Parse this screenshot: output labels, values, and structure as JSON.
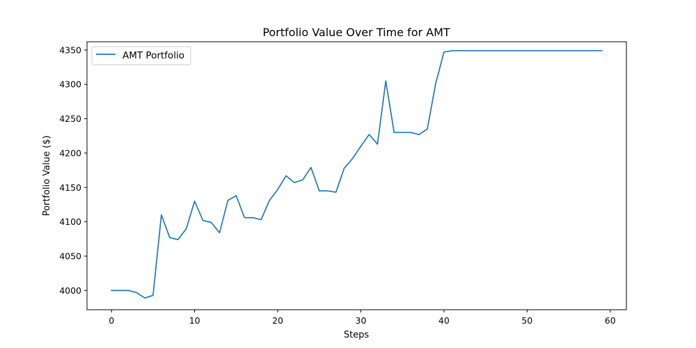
{
  "chart_data": {
    "type": "line",
    "title": "Portfolio Value Over Time for AMT",
    "xlabel": "Steps",
    "ylabel": "Portfolio Value ($)",
    "xlim": [
      -2.95,
      61.95
    ],
    "ylim": [
      3972,
      4362
    ],
    "xticks": [
      0,
      10,
      20,
      30,
      40,
      50,
      60
    ],
    "yticks": [
      4000,
      4050,
      4100,
      4150,
      4200,
      4250,
      4300,
      4350
    ],
    "grid": false,
    "legend": {
      "placement": "top-left"
    },
    "series": [
      {
        "name": "AMT Portfolio",
        "color": "#1f77b4",
        "x": [
          0,
          1,
          2,
          3,
          4,
          5,
          6,
          7,
          8,
          9,
          10,
          11,
          12,
          13,
          14,
          15,
          16,
          17,
          18,
          19,
          20,
          21,
          22,
          23,
          24,
          25,
          26,
          27,
          28,
          29,
          30,
          31,
          32,
          33,
          34,
          35,
          36,
          37,
          38,
          39,
          40,
          41,
          42,
          43,
          44,
          45,
          46,
          47,
          48,
          49,
          50,
          51,
          52,
          53,
          54,
          55,
          56,
          57,
          58,
          59
        ],
        "values": [
          4000,
          4000,
          4000,
          3997,
          3989,
          3993,
          4110,
          4077,
          4074,
          4090,
          4130,
          4102,
          4099,
          4084,
          4131,
          4138,
          4106,
          4106,
          4103,
          4131,
          4147,
          4167,
          4157,
          4161,
          4179,
          4145,
          4145,
          4143,
          4178,
          4192,
          4210,
          4227,
          4213,
          4305,
          4230,
          4230,
          4230,
          4227,
          4235,
          4301,
          4347,
          4349,
          4349,
          4349,
          4349,
          4349,
          4349,
          4349,
          4349,
          4349,
          4349,
          4349,
          4349,
          4349,
          4349,
          4349,
          4349,
          4349,
          4349,
          4349
        ]
      }
    ]
  }
}
